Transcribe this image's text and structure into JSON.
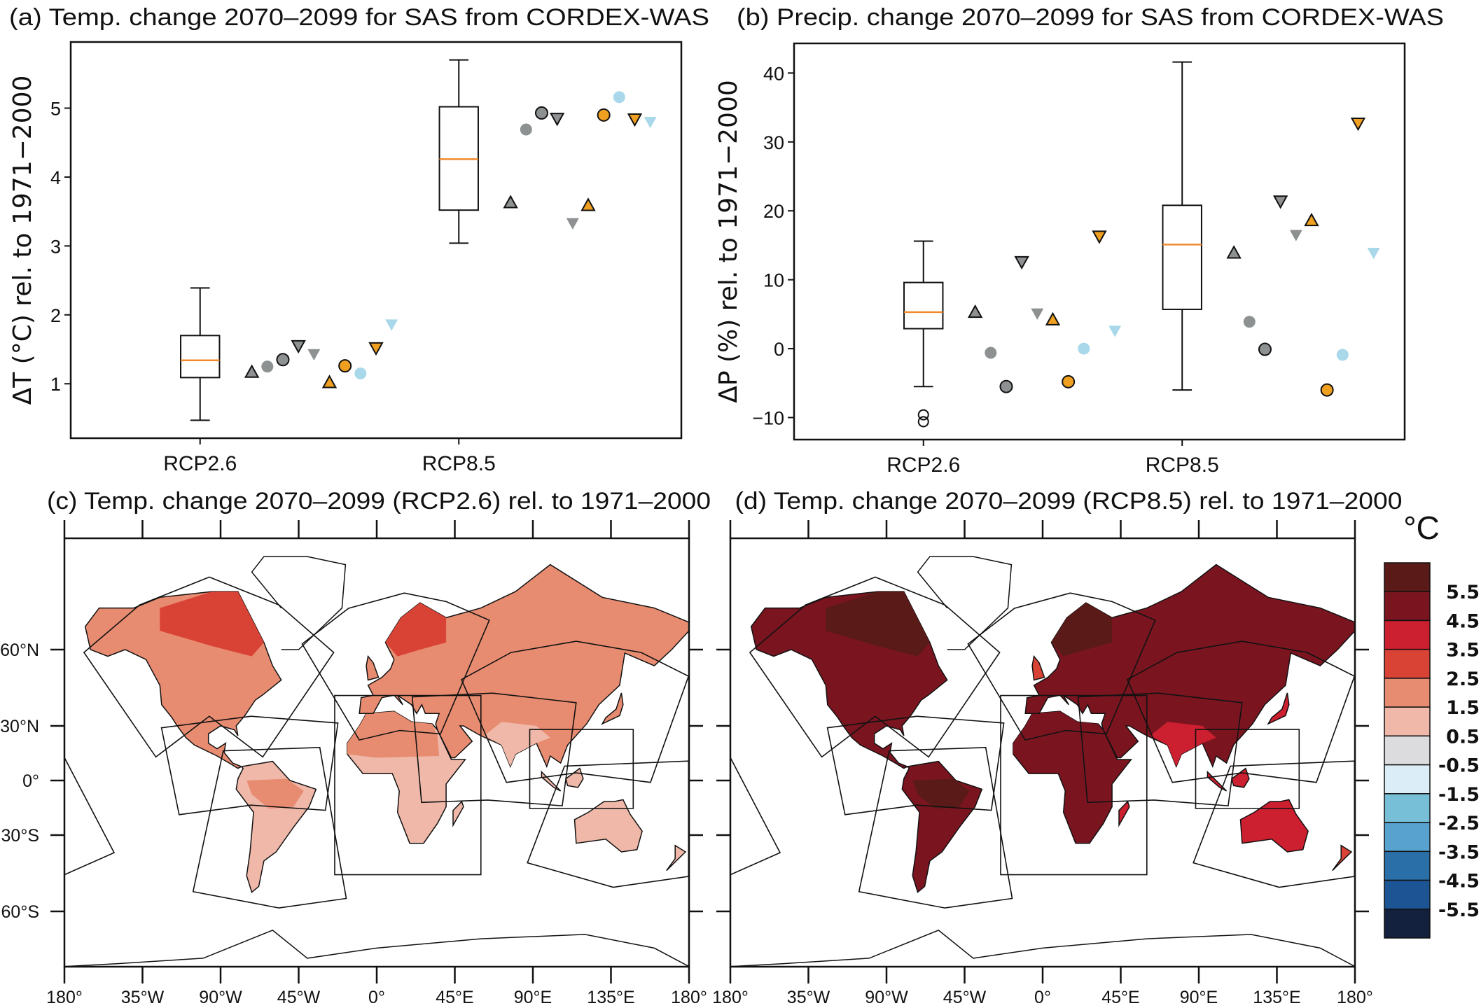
{
  "chart_data": [
    {
      "type": "box",
      "title": "(a) Temp. change 2070–2099 for SAS from CORDEX-WAS",
      "ylabel": "ΔT (°C) rel. to 1971−2000",
      "categories": [
        "RCP2.6",
        "RCP8.5"
      ],
      "ylim": [
        0.21,
        5.96
      ],
      "yticks": [
        "1",
        "2",
        "3",
        "4",
        "5"
      ],
      "ytick_values": [
        1,
        2,
        3,
        4,
        5
      ],
      "median_color": "#f08a2c",
      "boxes": [
        {
          "whislo": 0.47,
          "q1": 1.09,
          "median": 1.34,
          "q3": 1.7,
          "whishi": 2.39,
          "fliers": []
        },
        {
          "whislo": 3.04,
          "q1": 3.52,
          "median": 4.26,
          "q3": 5.02,
          "whishi": 5.7,
          "fliers": []
        }
      ],
      "models": [
        [
          1.17,
          1.25,
          1.35,
          1.55,
          1.43,
          1.02,
          1.26,
          1.15,
          1.52,
          1.86
        ],
        [
          3.63,
          4.69,
          4.93,
          4.85,
          3.33,
          3.59,
          4.9,
          5.16,
          4.84,
          4.8
        ]
      ]
    },
    {
      "type": "box",
      "title": "(b) Precip. change 2070–2099 for SAS from CORDEX-WAS",
      "ylabel": "ΔP (%) rel. to 1971−2000",
      "categories": [
        "RCP2.6",
        "RCP8.5"
      ],
      "ylim": [
        -13.2,
        44.3
      ],
      "yticks": [
        "−10",
        "0",
        "10",
        "20",
        "30",
        "40"
      ],
      "ytick_values": [
        -10,
        0,
        10,
        20,
        30,
        40
      ],
      "median_color": "#f08a2c",
      "boxes": [
        {
          "whislo": -5.5,
          "q1": 2.9,
          "median": 5.3,
          "q3": 9.6,
          "whishi": 15.6,
          "fliers": [
            -9.6,
            -10.6
          ]
        },
        {
          "whislo": -6.0,
          "q1": 5.7,
          "median": 15.1,
          "q3": 20.8,
          "whishi": 41.6,
          "fliers": []
        }
      ],
      "models": [
        [
          5.3,
          -0.6,
          -5.5,
          12.6,
          5.1,
          4.2,
          -4.8,
          0.0,
          16.3,
          2.6
        ],
        [
          13.9,
          3.9,
          -0.1,
          21.4,
          16.5,
          18.6,
          -6.0,
          -0.9,
          32.7,
          13.9
        ]
      ]
    }
  ],
  "model_markers": [
    {
      "shape": "triangle-up",
      "color": "#8e9192",
      "edge": true
    },
    {
      "shape": "circle",
      "color": "#8e9192",
      "edge": false
    },
    {
      "shape": "circle",
      "color": "#8e9192",
      "edge": true
    },
    {
      "shape": "triangle-down",
      "color": "#8e9192",
      "edge": true
    },
    {
      "shape": "triangle-down",
      "color": "#8e9192",
      "edge": false
    },
    {
      "shape": "triangle-up",
      "color": "#f0a020",
      "edge": true
    },
    {
      "shape": "circle",
      "color": "#f0a020",
      "edge": true
    },
    {
      "shape": "circle",
      "color": "#a8d8ea",
      "edge": false
    },
    {
      "shape": "triangle-down",
      "color": "#f0a020",
      "edge": true
    },
    {
      "shape": "triangle-down",
      "color": "#a8d8ea",
      "edge": false
    }
  ],
  "maps": {
    "c": {
      "title": "(c) Temp. change 2070–2099 (RCP2.6) rel. to 1971–2000"
    },
    "d": {
      "title": "(d) Temp. change 2070–2099 (RCP8.5) rel. to 1971–2000"
    },
    "lon_labels": [
      "180°",
      "35°W",
      "90°W",
      "45°W",
      "0°",
      "45°E",
      "90°E",
      "135°E",
      "180°"
    ],
    "lat_labels": [
      "60°N",
      "30°N",
      "0°",
      "30°S",
      "60°S"
    ],
    "lat_values": [
      60,
      30,
      0,
      -30,
      -60
    ],
    "regional_warming": {
      "c": {
        "north_america": 2.0,
        "canada_north": 3.0,
        "south_america": 1.0,
        "amazon": 2.0,
        "africa": 1.0,
        "sahara": 2.0,
        "eurasia": 2.0,
        "scandinavia": 3.0,
        "south_asia": 1.0,
        "australia": 1.0,
        "uk": 2.0,
        "japan": 2.0,
        "borneo": 1.0,
        "sumatra": 1.0,
        "madagascar": 1.0,
        "new_zealand": 1.0
      },
      "d": {
        "north_america": 5.0,
        "canada_north": 6.0,
        "south_america": 5.0,
        "amazon": 6.0,
        "africa": 5.0,
        "sahara": 5.0,
        "eurasia": 5.0,
        "scandinavia": 6.0,
        "south_asia": 4.0,
        "australia": 4.0,
        "uk": 3.0,
        "japan": 4.0,
        "borneo": 4.0,
        "sumatra": 4.0,
        "madagascar": 4.0,
        "new_zealand": 3.0
      }
    }
  },
  "colorbar": {
    "unit": "°C",
    "labels": [
      "5.5",
      "4.5",
      "3.5",
      "2.5",
      "1.5",
      "0.5",
      "-0.5",
      "-1.5",
      "-2.5",
      "-3.5",
      "-4.5",
      "-5.5"
    ],
    "boundaries": [
      5.5,
      4.5,
      3.5,
      2.5,
      1.5,
      0.5,
      -0.5,
      -1.5,
      -2.5,
      -3.5,
      -4.5,
      -5.5
    ],
    "colors": [
      "#5a1a17",
      "#7a1520",
      "#cc1f2f",
      "#d94336",
      "#e88c71",
      "#efb8a9",
      "#dcdcde",
      "#dbeef8",
      "#77bfd6",
      "#57a2cf",
      "#2a6fa8",
      "#1d5594",
      "#13213f"
    ]
  }
}
